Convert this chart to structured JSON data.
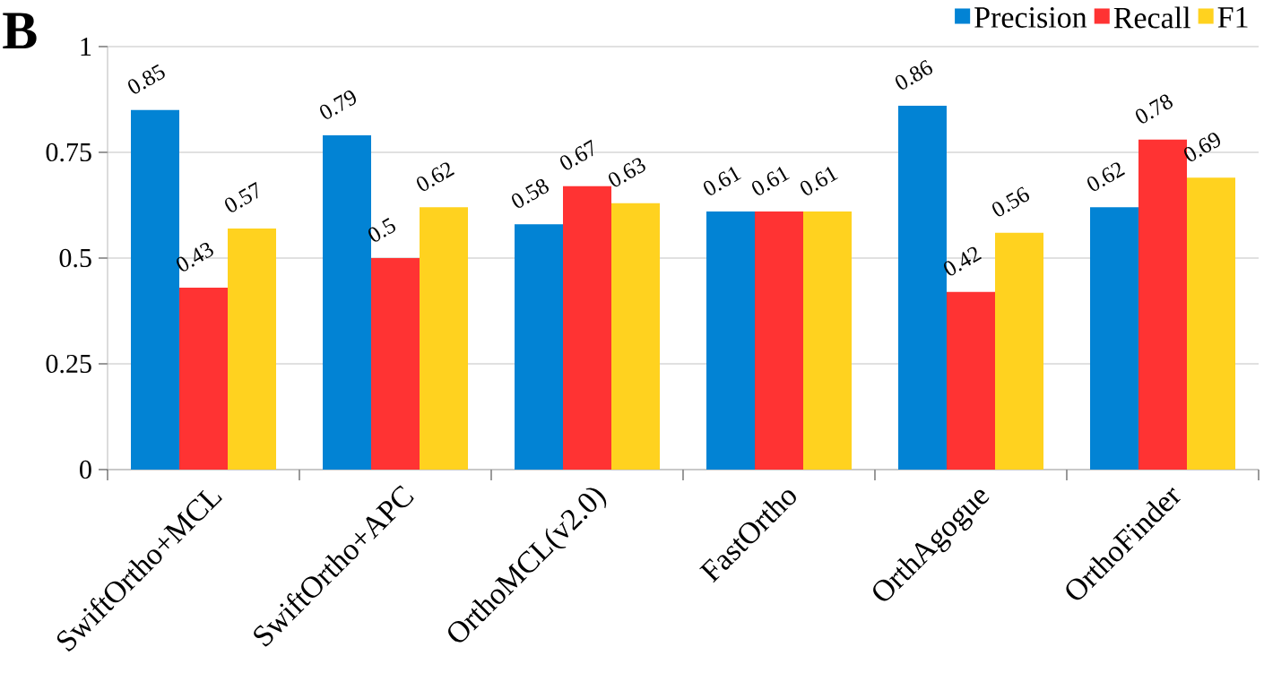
{
  "chart_data": {
    "type": "bar",
    "categories": [
      "SwiftOrtho+MCL",
      "SwiftOrtho+APC",
      "OrthoMCL(v2.0)",
      "FastOrtho",
      "OrthAgogue",
      "OrthoFinder"
    ],
    "series": [
      {
        "name": "Precision",
        "color": "#0283d4",
        "values": [
          0.85,
          0.79,
          0.58,
          0.61,
          0.86,
          0.62
        ]
      },
      {
        "name": "Recall",
        "color": "#ff3333",
        "values": [
          0.43,
          0.5,
          0.67,
          0.61,
          0.42,
          0.78
        ]
      },
      {
        "name": "F1",
        "color": "#ffd21f",
        "values": [
          0.57,
          0.62,
          0.63,
          0.61,
          0.56,
          0.69
        ]
      }
    ],
    "ylim": [
      0,
      1
    ],
    "yticks": [
      0,
      0.25,
      0.5,
      0.75,
      1
    ],
    "grid": "y",
    "legend": "top right",
    "data_labels": true,
    "annotations": [
      "B"
    ]
  }
}
